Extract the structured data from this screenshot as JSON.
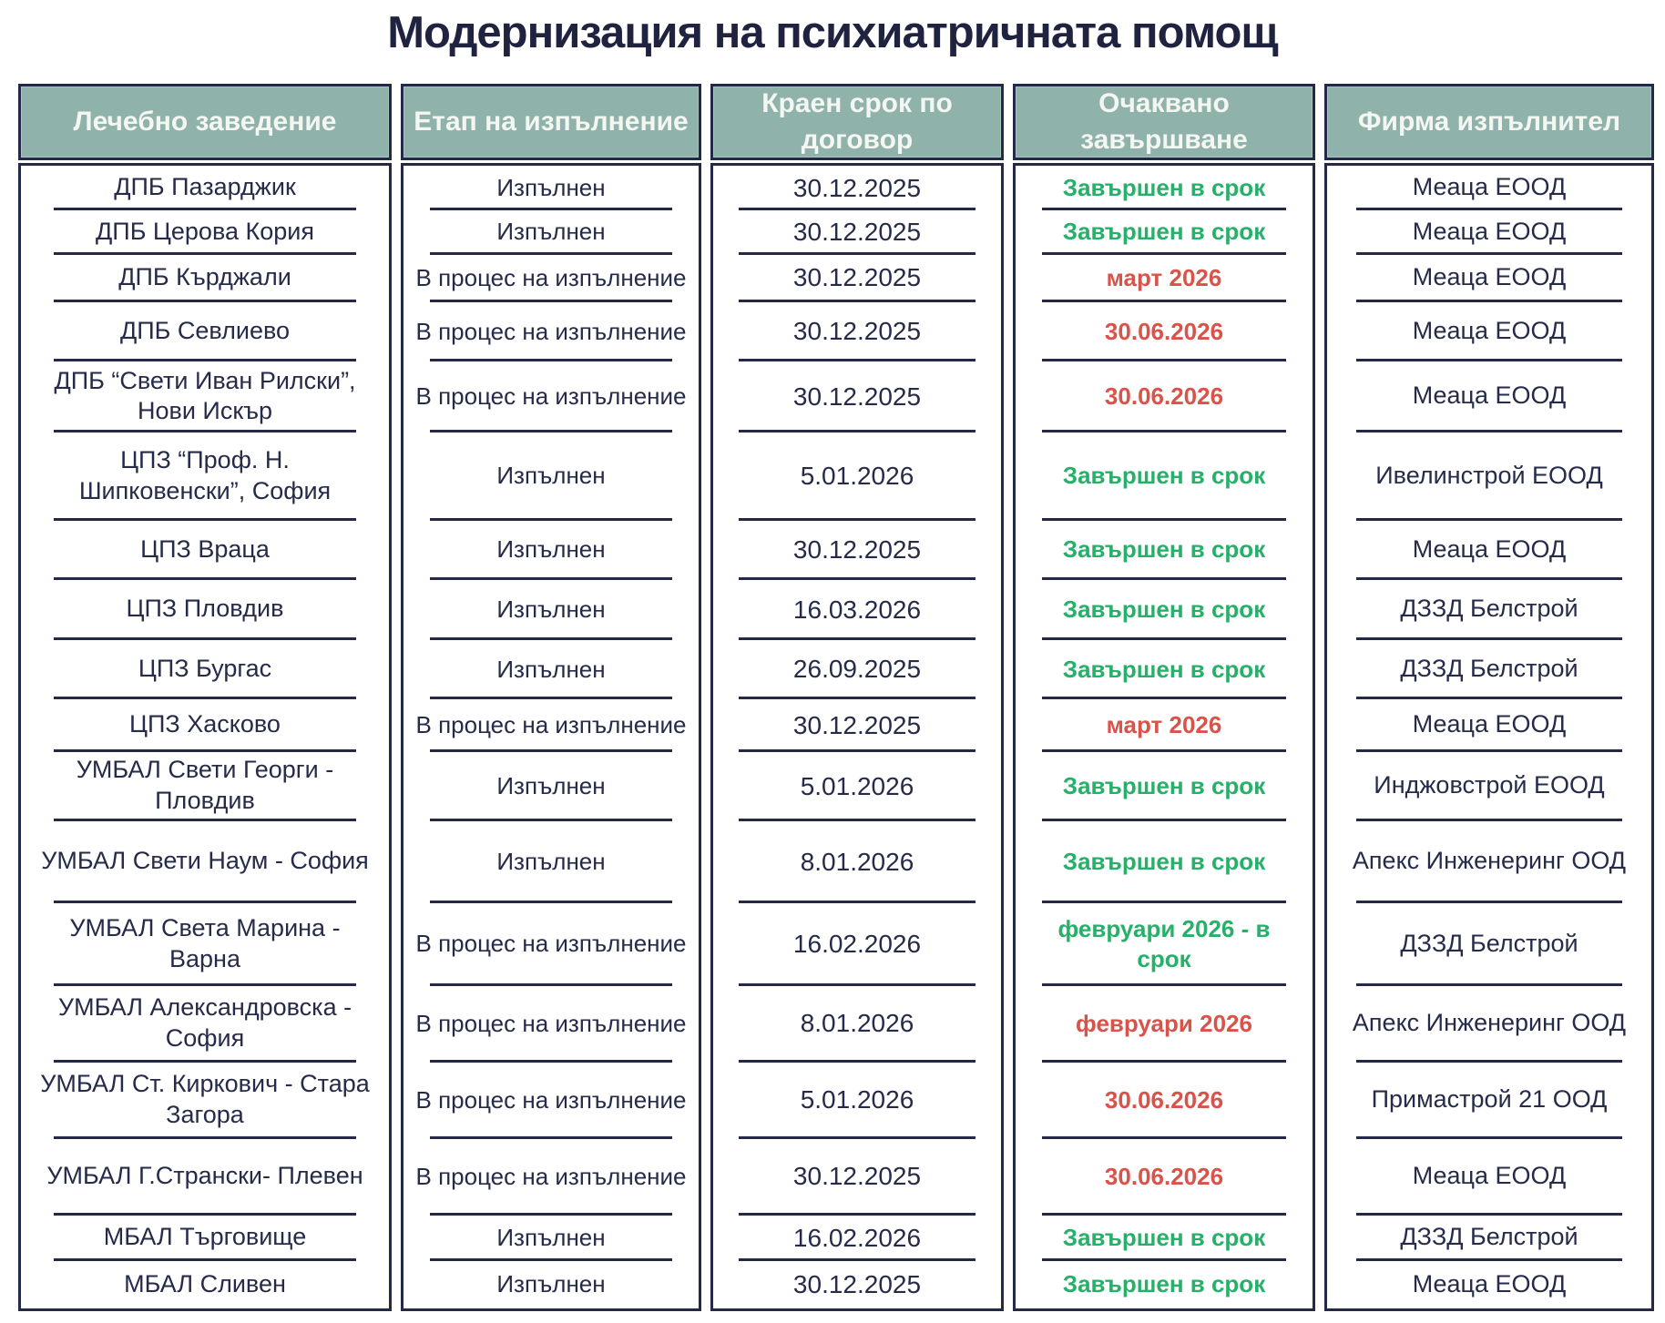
{
  "title": "Модернизация на психиатричната помощ",
  "colors": {
    "header_bg": "#8FB2AB",
    "border": "#232946",
    "text": "#252B49",
    "green": "#27B069",
    "red": "#D9534A"
  },
  "table": {
    "headers": [
      "Лечебно заведение",
      "Етап на изпълнение",
      "Краен срок по договор",
      "Очаквано завършване",
      "Фирма изпълнител"
    ],
    "rows": [
      {
        "facility": "ДПБ Пазарджик",
        "stage": "Изпълнен",
        "deadline": "30.12.2025",
        "expected": "Завършен в срок",
        "expected_status": "green",
        "contractor": "Меаца ЕООД"
      },
      {
        "facility": "ДПБ Церова Кория",
        "stage": "Изпълнен",
        "deadline": "30.12.2025",
        "expected": "Завършен в срок",
        "expected_status": "green",
        "contractor": "Меаца ЕООД"
      },
      {
        "facility": "ДПБ Кърджали",
        "stage": "В процес на изпълнение",
        "deadline": "30.12.2025",
        "expected": "март 2026",
        "expected_status": "red",
        "contractor": "Меаца ЕООД"
      },
      {
        "facility": "ДПБ Севлиево",
        "stage": "В процес на изпълнение",
        "deadline": "30.12.2025",
        "expected": "30.06.2026",
        "expected_status": "red",
        "contractor": "Меаца ЕООД"
      },
      {
        "facility": "ДПБ “Свети Иван Рилски”, Нови Искър",
        "stage": "В процес на изпълнение",
        "deadline": "30.12.2025",
        "expected": "30.06.2026",
        "expected_status": "red",
        "contractor": "Меаца ЕООД"
      },
      {
        "facility": "ЦПЗ “Проф. Н. Шипковенски”, София",
        "stage": "Изпълнен",
        "deadline": "5.01.2026",
        "expected": "Завършен в срок",
        "expected_status": "green",
        "contractor": "Ивелинстрой ЕООД"
      },
      {
        "facility": "ЦПЗ Враца",
        "stage": "Изпълнен",
        "deadline": "30.12.2025",
        "expected": "Завършен в срок",
        "expected_status": "green",
        "contractor": "Меаца ЕООД"
      },
      {
        "facility": "ЦПЗ Пловдив",
        "stage": "Изпълнен",
        "deadline": "16.03.2026",
        "expected": "Завършен в срок",
        "expected_status": "green",
        "contractor": "ДЗЗД Белстрой"
      },
      {
        "facility": "ЦПЗ Бургас",
        "stage": "Изпълнен",
        "deadline": "26.09.2025",
        "expected": "Завършен в срок",
        "expected_status": "green",
        "contractor": "ДЗЗД Белстрой"
      },
      {
        "facility": "ЦПЗ Хасково",
        "stage": "В процес на изпълнение",
        "deadline": "30.12.2025",
        "expected": "март 2026",
        "expected_status": "red",
        "contractor": "Меаца ЕООД"
      },
      {
        "facility": "УМБАЛ Свети Георги - Пловдив",
        "stage": "Изпълнен",
        "deadline": "5.01.2026",
        "expected": "Завършен в срок",
        "expected_status": "green",
        "contractor": "Инджовстрой ЕООД"
      },
      {
        "facility": "УМБАЛ Свети Наум - София",
        "stage": "Изпълнен",
        "deadline": "8.01.2026",
        "expected": "Завършен в срок",
        "expected_status": "green",
        "contractor": "Апекс Инженеринг ООД"
      },
      {
        "facility": "УМБАЛ Света Марина - Варна",
        "stage": "В процес на изпълнение",
        "deadline": "16.02.2026",
        "expected": "февруари 2026 -  в срок",
        "expected_status": "green",
        "contractor": "ДЗЗД Белстрой"
      },
      {
        "facility": "УМБАЛ Александровска - София",
        "stage": "В процес на изпълнение",
        "deadline": "8.01.2026",
        "expected": "февруари 2026",
        "expected_status": "red",
        "contractor": "Апекс Инженеринг ООД"
      },
      {
        "facility": "УМБАЛ Ст. Киркович - Стара Загора",
        "stage": "В процес на изпълнение",
        "deadline": "5.01.2026",
        "expected": "30.06.2026",
        "expected_status": "red",
        "contractor": "Примастрой 21 ООД"
      },
      {
        "facility": "УМБАЛ Г.Странски- Плевен",
        "stage": "В процес на изпълнение",
        "deadline": "30.12.2025",
        "expected": "30.06.2026",
        "expected_status": "red",
        "contractor": "Меаца ЕООД"
      },
      {
        "facility": "МБАЛ Търговище",
        "stage": "Изпълнен",
        "deadline": "16.02.2026",
        "expected": "Завършен в срок",
        "expected_status": "green",
        "contractor": "ДЗЗД Белстрой"
      },
      {
        "facility": "МБАЛ Сливен",
        "stage": "Изпълнен",
        "deadline": "30.12.2025",
        "expected": "Завършен в срок",
        "expected_status": "green",
        "contractor": "Меаца ЕООД"
      }
    ]
  }
}
